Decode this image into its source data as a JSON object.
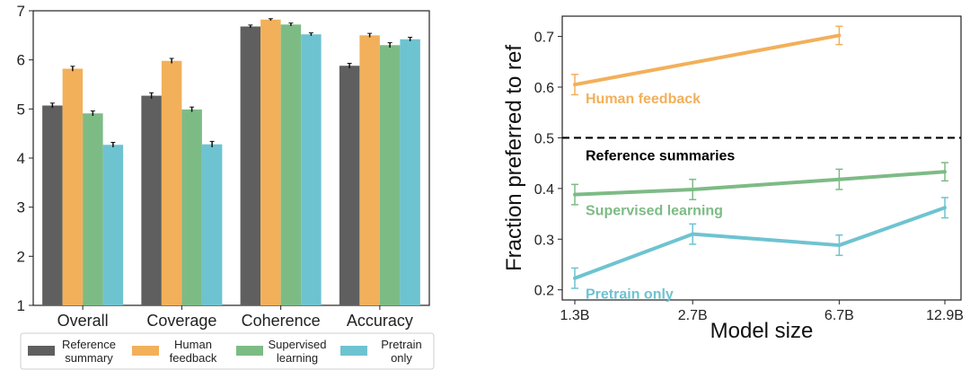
{
  "chart_data": [
    {
      "type": "bar",
      "title": "",
      "xlabel": "",
      "ylabel": "",
      "ylim": [
        1,
        7
      ],
      "yticks": [
        1,
        2,
        3,
        4,
        5,
        6,
        7
      ],
      "categories": [
        "Overall",
        "Coverage",
        "Coherence",
        "Accuracy"
      ],
      "series": [
        {
          "name": "Reference summary",
          "legend_lines": [
            "Reference",
            "summary"
          ],
          "color": "#5f5f5f",
          "values": [
            5.07,
            5.27,
            6.68,
            5.88
          ],
          "errors": [
            0.05,
            0.06,
            0.03,
            0.05
          ]
        },
        {
          "name": "Human feedback",
          "legend_lines": [
            "Human",
            "feedback"
          ],
          "color": "#f2b05a",
          "values": [
            5.82,
            5.98,
            6.82,
            6.5
          ],
          "errors": [
            0.05,
            0.05,
            0.02,
            0.04
          ]
        },
        {
          "name": "Supervised learning",
          "legend_lines": [
            "Supervised",
            "learning"
          ],
          "color": "#7dbb85",
          "values": [
            4.91,
            4.99,
            6.72,
            6.3
          ],
          "errors": [
            0.05,
            0.05,
            0.03,
            0.05
          ]
        },
        {
          "name": "Pretrain only",
          "legend_lines": [
            "Pretrain",
            "only"
          ],
          "color": "#6ec3d1",
          "values": [
            4.27,
            4.28,
            6.52,
            6.42
          ],
          "errors": [
            0.05,
            0.06,
            0.03,
            0.04
          ]
        }
      ],
      "legend": "bottom"
    },
    {
      "type": "line",
      "title": "",
      "xlabel": "Model size",
      "ylabel": "Fraction preferred to ref",
      "x": [
        1.3,
        2.7,
        6.7,
        12.9
      ],
      "x_scale": "log",
      "x_tick_labels": [
        "1.3B",
        "2.7B",
        "6.7B",
        "12.9B"
      ],
      "ylim": [
        0.18,
        0.74
      ],
      "yticks": [
        0.2,
        0.3,
        0.4,
        0.5,
        0.6,
        0.7
      ],
      "ytick_labels": [
        "0.2",
        "0.3",
        "0.4",
        "0.5",
        "0.6",
        "0.7"
      ],
      "reference_line": {
        "y": 0.5,
        "label": "Reference summaries",
        "color": "#000000"
      },
      "series": [
        {
          "name": "Human feedback",
          "color": "#f2b05a",
          "x": [
            1.3,
            6.7
          ],
          "values": [
            0.605,
            0.702
          ],
          "errors": [
            0.02,
            0.018
          ]
        },
        {
          "name": "Supervised learning",
          "color": "#7dbb85",
          "x": [
            1.3,
            2.7,
            6.7,
            12.9
          ],
          "values": [
            0.388,
            0.398,
            0.418,
            0.433
          ],
          "errors": [
            0.02,
            0.02,
            0.02,
            0.018
          ]
        },
        {
          "name": "Pretrain only",
          "color": "#6ec3d1",
          "x": [
            1.3,
            2.7,
            6.7,
            12.9
          ],
          "values": [
            0.223,
            0.31,
            0.288,
            0.362
          ],
          "errors": [
            0.02,
            0.02,
            0.02,
            0.02
          ]
        }
      ]
    }
  ]
}
